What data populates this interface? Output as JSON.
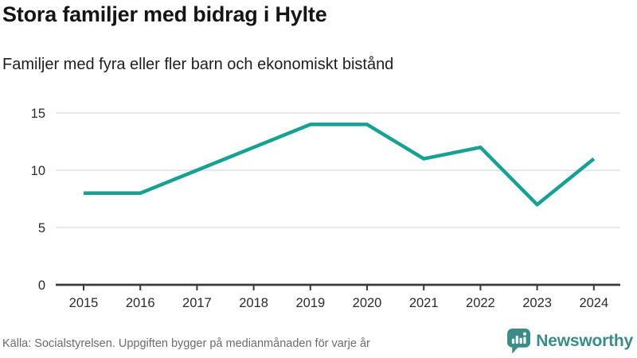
{
  "header": {
    "title": "Stora familjer med bidrag i Hylte",
    "subtitle": "Familjer med fyra eller fler barn och ekonomiskt bistånd"
  },
  "chart_data": {
    "type": "line",
    "title": "Stora familjer med bidrag i Hylte",
    "subtitle": "Familjer med fyra eller fler barn och ekonomiskt bistånd",
    "x": [
      2015,
      2016,
      2017,
      2018,
      2019,
      2020,
      2021,
      2022,
      2023,
      2024
    ],
    "series": [
      {
        "name": "Familjer med fyra eller fler barn och ekonomiskt bistånd",
        "values": [
          8,
          8,
          10,
          12,
          14,
          14,
          11,
          12,
          7,
          11
        ],
        "color": "#18a092"
      }
    ],
    "yticks": [
      0,
      5,
      10,
      15
    ],
    "ylim": [
      0,
      15.8
    ],
    "xlabel": "",
    "ylabel": "",
    "grid": true,
    "legend_position": "none"
  },
  "footer": {
    "source": "Källa: Socialstyrelsen. Uppgiften bygger på medianmånaden för varje år",
    "brand_name": "Newsworthy"
  },
  "colors": {
    "line": "#18a092",
    "brand_teal": "#3b8c86",
    "grid": "#e3e3e3",
    "axis": "#3a3a3a",
    "tick_label": "#2b2b2b",
    "title_text": "#151515",
    "muted_text": "#6a6a73",
    "background": "#ffffff"
  },
  "icons": {
    "brand_icon": "newsworthy-speech-bubble-bar-chart-icon"
  }
}
